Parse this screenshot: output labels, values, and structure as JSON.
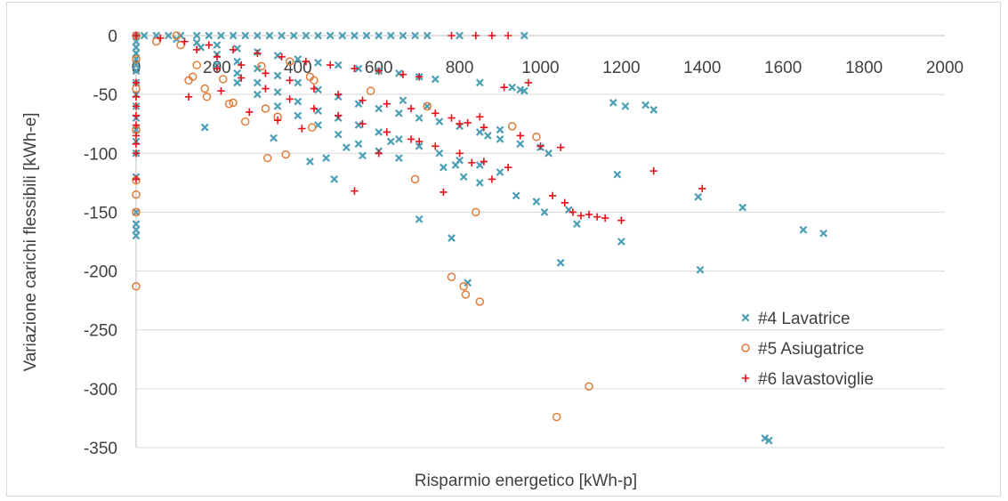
{
  "chart_data": {
    "type": "scatter",
    "xlabel": "Risparmio energetico [kWh-p]",
    "ylabel": "Variazione carichi flessibili [kWh-e]",
    "xlim": [
      0,
      2000
    ],
    "ylim": [
      -350,
      0
    ],
    "xticks": [
      "0",
      "200",
      "400",
      "600",
      "800",
      "1000",
      "1200",
      "1400",
      "1600",
      "1800",
      "2000"
    ],
    "yticks": [
      "0",
      "-50",
      "-100",
      "-150",
      "-200",
      "-250",
      "-300",
      "-350"
    ],
    "grid": true,
    "legend_position": "right",
    "series": [
      {
        "name": "#4 Lavatrice",
        "marker": "x",
        "color": "#4a9fb5",
        "points": [
          [
            0,
            0
          ],
          [
            20,
            0
          ],
          [
            50,
            0
          ],
          [
            80,
            0
          ],
          [
            110,
            0
          ],
          [
            150,
            0
          ],
          [
            180,
            0
          ],
          [
            210,
            0
          ],
          [
            240,
            0
          ],
          [
            270,
            0
          ],
          [
            300,
            0
          ],
          [
            330,
            0
          ],
          [
            360,
            0
          ],
          [
            390,
            0
          ],
          [
            420,
            0
          ],
          [
            450,
            0
          ],
          [
            480,
            0
          ],
          [
            510,
            0
          ],
          [
            540,
            0
          ],
          [
            570,
            0
          ],
          [
            600,
            0
          ],
          [
            630,
            0
          ],
          [
            660,
            0
          ],
          [
            690,
            0
          ],
          [
            720,
            0
          ],
          [
            800,
            0
          ],
          [
            960,
            0
          ],
          [
            0,
            -5
          ],
          [
            0,
            -10
          ],
          [
            0,
            -15
          ],
          [
            0,
            -20
          ],
          [
            0,
            -25
          ],
          [
            0,
            -30
          ],
          [
            0,
            -40
          ],
          [
            0,
            -50
          ],
          [
            0,
            -60
          ],
          [
            0,
            -70
          ],
          [
            0,
            -80
          ],
          [
            0,
            -90
          ],
          [
            0,
            -100
          ],
          [
            0,
            -120
          ],
          [
            0,
            -150
          ],
          [
            0,
            -160
          ],
          [
            0,
            -165
          ],
          [
            0,
            -170
          ],
          [
            100,
            -3
          ],
          [
            150,
            -6
          ],
          [
            200,
            -8
          ],
          [
            250,
            -11
          ],
          [
            300,
            -14
          ],
          [
            350,
            -17
          ],
          [
            400,
            -20
          ],
          [
            450,
            -23
          ],
          [
            500,
            -25
          ],
          [
            550,
            -28
          ],
          [
            600,
            -30
          ],
          [
            650,
            -32
          ],
          [
            700,
            -35
          ],
          [
            740,
            -37
          ],
          [
            160,
            -10
          ],
          [
            200,
            -16
          ],
          [
            250,
            -22
          ],
          [
            300,
            -28
          ],
          [
            350,
            -34
          ],
          [
            400,
            -40
          ],
          [
            450,
            -46
          ],
          [
            500,
            -52
          ],
          [
            550,
            -58
          ],
          [
            600,
            -62
          ],
          [
            650,
            -66
          ],
          [
            700,
            -70
          ],
          [
            750,
            -73
          ],
          [
            800,
            -77
          ],
          [
            850,
            -82
          ],
          [
            900,
            -88
          ],
          [
            950,
            -92
          ],
          [
            1000,
            -95
          ],
          [
            200,
            -25
          ],
          [
            250,
            -32
          ],
          [
            300,
            -40
          ],
          [
            350,
            -48
          ],
          [
            400,
            -56
          ],
          [
            450,
            -64
          ],
          [
            500,
            -70
          ],
          [
            550,
            -76
          ],
          [
            600,
            -82
          ],
          [
            650,
            -88
          ],
          [
            700,
            -94
          ],
          [
            750,
            -100
          ],
          [
            800,
            -106
          ],
          [
            850,
            -110
          ],
          [
            900,
            -116
          ],
          [
            250,
            -40
          ],
          [
            300,
            -50
          ],
          [
            350,
            -60
          ],
          [
            400,
            -68
          ],
          [
            450,
            -76
          ],
          [
            500,
            -84
          ],
          [
            550,
            -92
          ],
          [
            600,
            -98
          ],
          [
            650,
            -104
          ],
          [
            170,
            -78
          ],
          [
            340,
            -87
          ],
          [
            430,
            -107
          ],
          [
            470,
            -104
          ],
          [
            490,
            -122
          ],
          [
            520,
            -95
          ],
          [
            560,
            -102
          ],
          [
            630,
            -90
          ],
          [
            660,
            -55
          ],
          [
            700,
            -156
          ],
          [
            720,
            -60
          ],
          [
            760,
            -112
          ],
          [
            780,
            -172
          ],
          [
            790,
            -110
          ],
          [
            810,
            -120
          ],
          [
            820,
            -210
          ],
          [
            850,
            -40
          ],
          [
            850,
            -125
          ],
          [
            870,
            -85
          ],
          [
            900,
            -80
          ],
          [
            930,
            -44
          ],
          [
            940,
            -136
          ],
          [
            950,
            -46
          ],
          [
            960,
            -47
          ],
          [
            990,
            -141
          ],
          [
            1010,
            -150
          ],
          [
            1020,
            -100
          ],
          [
            1050,
            -193
          ],
          [
            1070,
            -148
          ],
          [
            1090,
            -160
          ],
          [
            1180,
            -57
          ],
          [
            1190,
            -118
          ],
          [
            1200,
            -175
          ],
          [
            1210,
            -60
          ],
          [
            1260,
            -59
          ],
          [
            1280,
            -63
          ],
          [
            1390,
            -137
          ],
          [
            1395,
            -199
          ],
          [
            1500,
            -146
          ],
          [
            1650,
            -165
          ],
          [
            1700,
            -168
          ],
          [
            1555,
            -342
          ],
          [
            1565,
            -344
          ]
        ]
      },
      {
        "name": "#5 Asiugatrice",
        "marker": "o",
        "color": "#e07b39",
        "points": [
          [
            0,
            0
          ],
          [
            0,
            -20
          ],
          [
            0,
            -45
          ],
          [
            0,
            -80
          ],
          [
            0,
            -123
          ],
          [
            0,
            -135
          ],
          [
            0,
            -150
          ],
          [
            0,
            -213
          ],
          [
            50,
            -5
          ],
          [
            100,
            0
          ],
          [
            110,
            -8
          ],
          [
            130,
            -38
          ],
          [
            140,
            -35
          ],
          [
            150,
            -25
          ],
          [
            170,
            -45
          ],
          [
            175,
            -52
          ],
          [
            215,
            -37
          ],
          [
            230,
            -58
          ],
          [
            240,
            -57
          ],
          [
            270,
            -73
          ],
          [
            310,
            -26
          ],
          [
            320,
            -62
          ],
          [
            325,
            -104
          ],
          [
            350,
            -69
          ],
          [
            370,
            -101
          ],
          [
            380,
            -22
          ],
          [
            430,
            -35
          ],
          [
            435,
            -78
          ],
          [
            440,
            -38
          ],
          [
            580,
            -47
          ],
          [
            690,
            -122
          ],
          [
            720,
            -60
          ],
          [
            780,
            -205
          ],
          [
            810,
            -213
          ],
          [
            815,
            -220
          ],
          [
            840,
            -150
          ],
          [
            850,
            -226
          ],
          [
            930,
            -77
          ],
          [
            990,
            -86
          ],
          [
            1040,
            -324
          ],
          [
            1120,
            -298
          ]
        ]
      },
      {
        "name": "#6 lavastoviglie",
        "marker": "+",
        "color": "#e8101a",
        "points": [
          [
            0,
            0
          ],
          [
            0,
            -40
          ],
          [
            0,
            -52
          ],
          [
            0,
            -60
          ],
          [
            0,
            -68
          ],
          [
            0,
            -76
          ],
          [
            0,
            -85
          ],
          [
            0,
            -92
          ],
          [
            0,
            -100
          ],
          [
            0,
            -122
          ],
          [
            60,
            -2
          ],
          [
            120,
            -5
          ],
          [
            180,
            -8
          ],
          [
            240,
            -12
          ],
          [
            300,
            -15
          ],
          [
            360,
            -18
          ],
          [
            420,
            -22
          ],
          [
            480,
            -25
          ],
          [
            540,
            -28
          ],
          [
            600,
            -30
          ],
          [
            660,
            -33
          ],
          [
            700,
            -35
          ],
          [
            150,
            -12
          ],
          [
            200,
            -18
          ],
          [
            260,
            -25
          ],
          [
            320,
            -32
          ],
          [
            380,
            -38
          ],
          [
            440,
            -45
          ],
          [
            500,
            -50
          ],
          [
            560,
            -55
          ],
          [
            620,
            -58
          ],
          [
            680,
            -62
          ],
          [
            740,
            -66
          ],
          [
            780,
            -70
          ],
          [
            820,
            -74
          ],
          [
            860,
            -78
          ],
          [
            200,
            -28
          ],
          [
            260,
            -36
          ],
          [
            320,
            -45
          ],
          [
            380,
            -54
          ],
          [
            440,
            -62
          ],
          [
            500,
            -68
          ],
          [
            560,
            -75
          ],
          [
            620,
            -82
          ],
          [
            680,
            -88
          ],
          [
            740,
            -94
          ],
          [
            800,
            -100
          ],
          [
            860,
            -107
          ],
          [
            920,
            -112
          ],
          [
            130,
            -52
          ],
          [
            210,
            -47
          ],
          [
            280,
            -65
          ],
          [
            350,
            -72
          ],
          [
            410,
            -79
          ],
          [
            540,
            -132
          ],
          [
            600,
            -100
          ],
          [
            700,
            -90
          ],
          [
            760,
            -133
          ],
          [
            800,
            -75
          ],
          [
            830,
            -108
          ],
          [
            850,
            -69
          ],
          [
            880,
            -122
          ],
          [
            910,
            -44
          ],
          [
            950,
            -85
          ],
          [
            970,
            -40
          ],
          [
            1000,
            -94
          ],
          [
            1030,
            -136
          ],
          [
            1050,
            -95
          ],
          [
            1060,
            -142
          ],
          [
            1080,
            -150
          ],
          [
            1100,
            -153
          ],
          [
            1120,
            -152
          ],
          [
            1140,
            -154
          ],
          [
            1160,
            -155
          ],
          [
            1200,
            -157
          ],
          [
            1280,
            -115
          ],
          [
            1400,
            -130
          ],
          [
            780,
            0
          ],
          [
            840,
            0
          ],
          [
            880,
            0
          ],
          [
            920,
            0
          ]
        ]
      }
    ]
  }
}
